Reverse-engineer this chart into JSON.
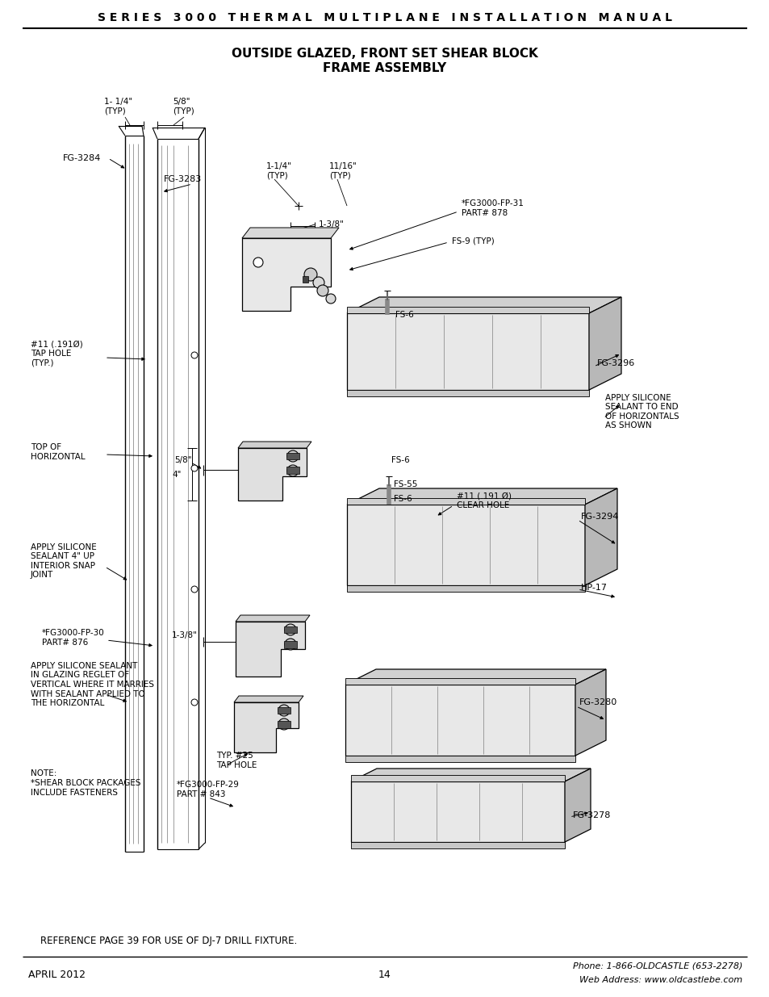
{
  "header_text": "S E R I E S   3 0 0 0   T H E R M A L   M U L T I P L A N E   I N S T A L L A T I O N   M A N U A L",
  "title_line1": "OUTSIDE GLAZED, FRONT SET SHEAR BLOCK",
  "title_line2": "FRAME ASSEMBLY",
  "footer_left": "APRIL 2012",
  "footer_center": "14",
  "footer_right_line1": "Phone: 1-866-OLDCASTLE (653-2278)",
  "footer_right_line2": "Web Address: www.oldcastlebe.com",
  "reference_note": "REFERENCE PAGE 39 FOR USE OF DJ-7 DRILL FIXTURE.",
  "bg_color": "#ffffff"
}
